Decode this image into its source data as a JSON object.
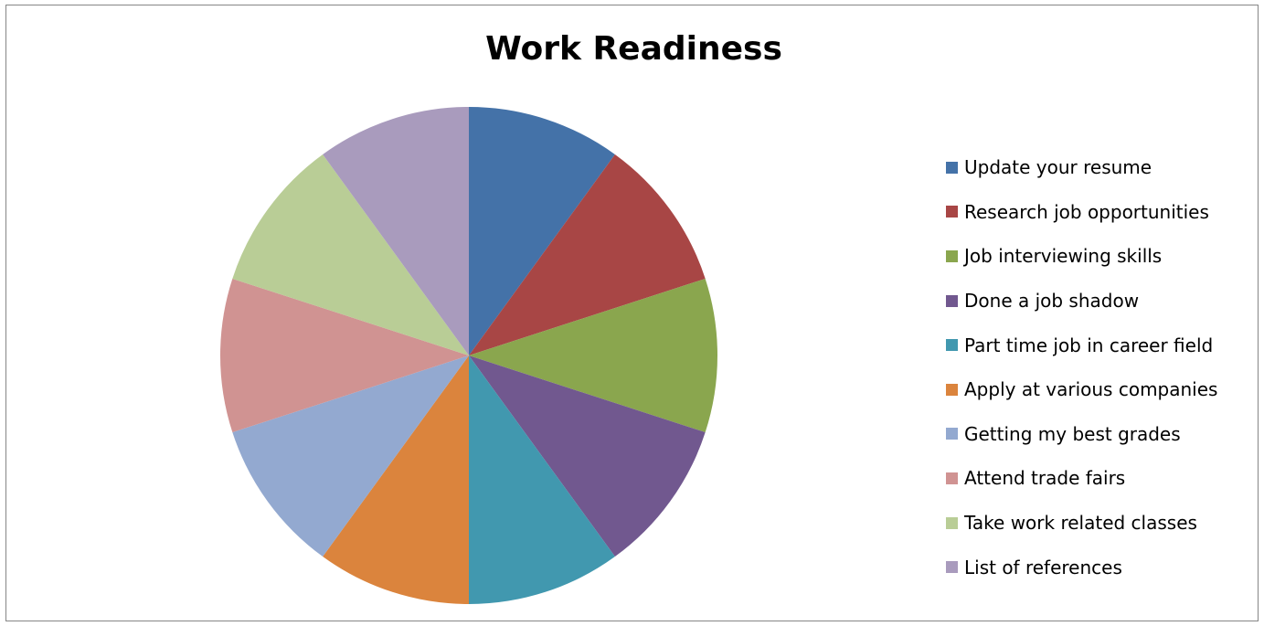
{
  "chart_data": {
    "type": "pie",
    "title": "Work Readiness",
    "legend_position": "right",
    "categories": [
      "Update your resume",
      "Research job opportunities",
      "Job interviewing skills",
      "Done a job shadow",
      "Part time job in career field",
      "Apply at various companies",
      "Getting my best grades",
      "Attend trade fairs",
      "Take work related classes",
      "List of references"
    ],
    "values": [
      1,
      1,
      1,
      1,
      1,
      1,
      1,
      1,
      1,
      1
    ],
    "colors": [
      "#4472A8",
      "#A84645",
      "#8AA64E",
      "#71588F",
      "#4198AF",
      "#DB843D",
      "#93A9D0",
      "#D09392",
      "#B9CD96",
      "#A99BBD"
    ]
  }
}
